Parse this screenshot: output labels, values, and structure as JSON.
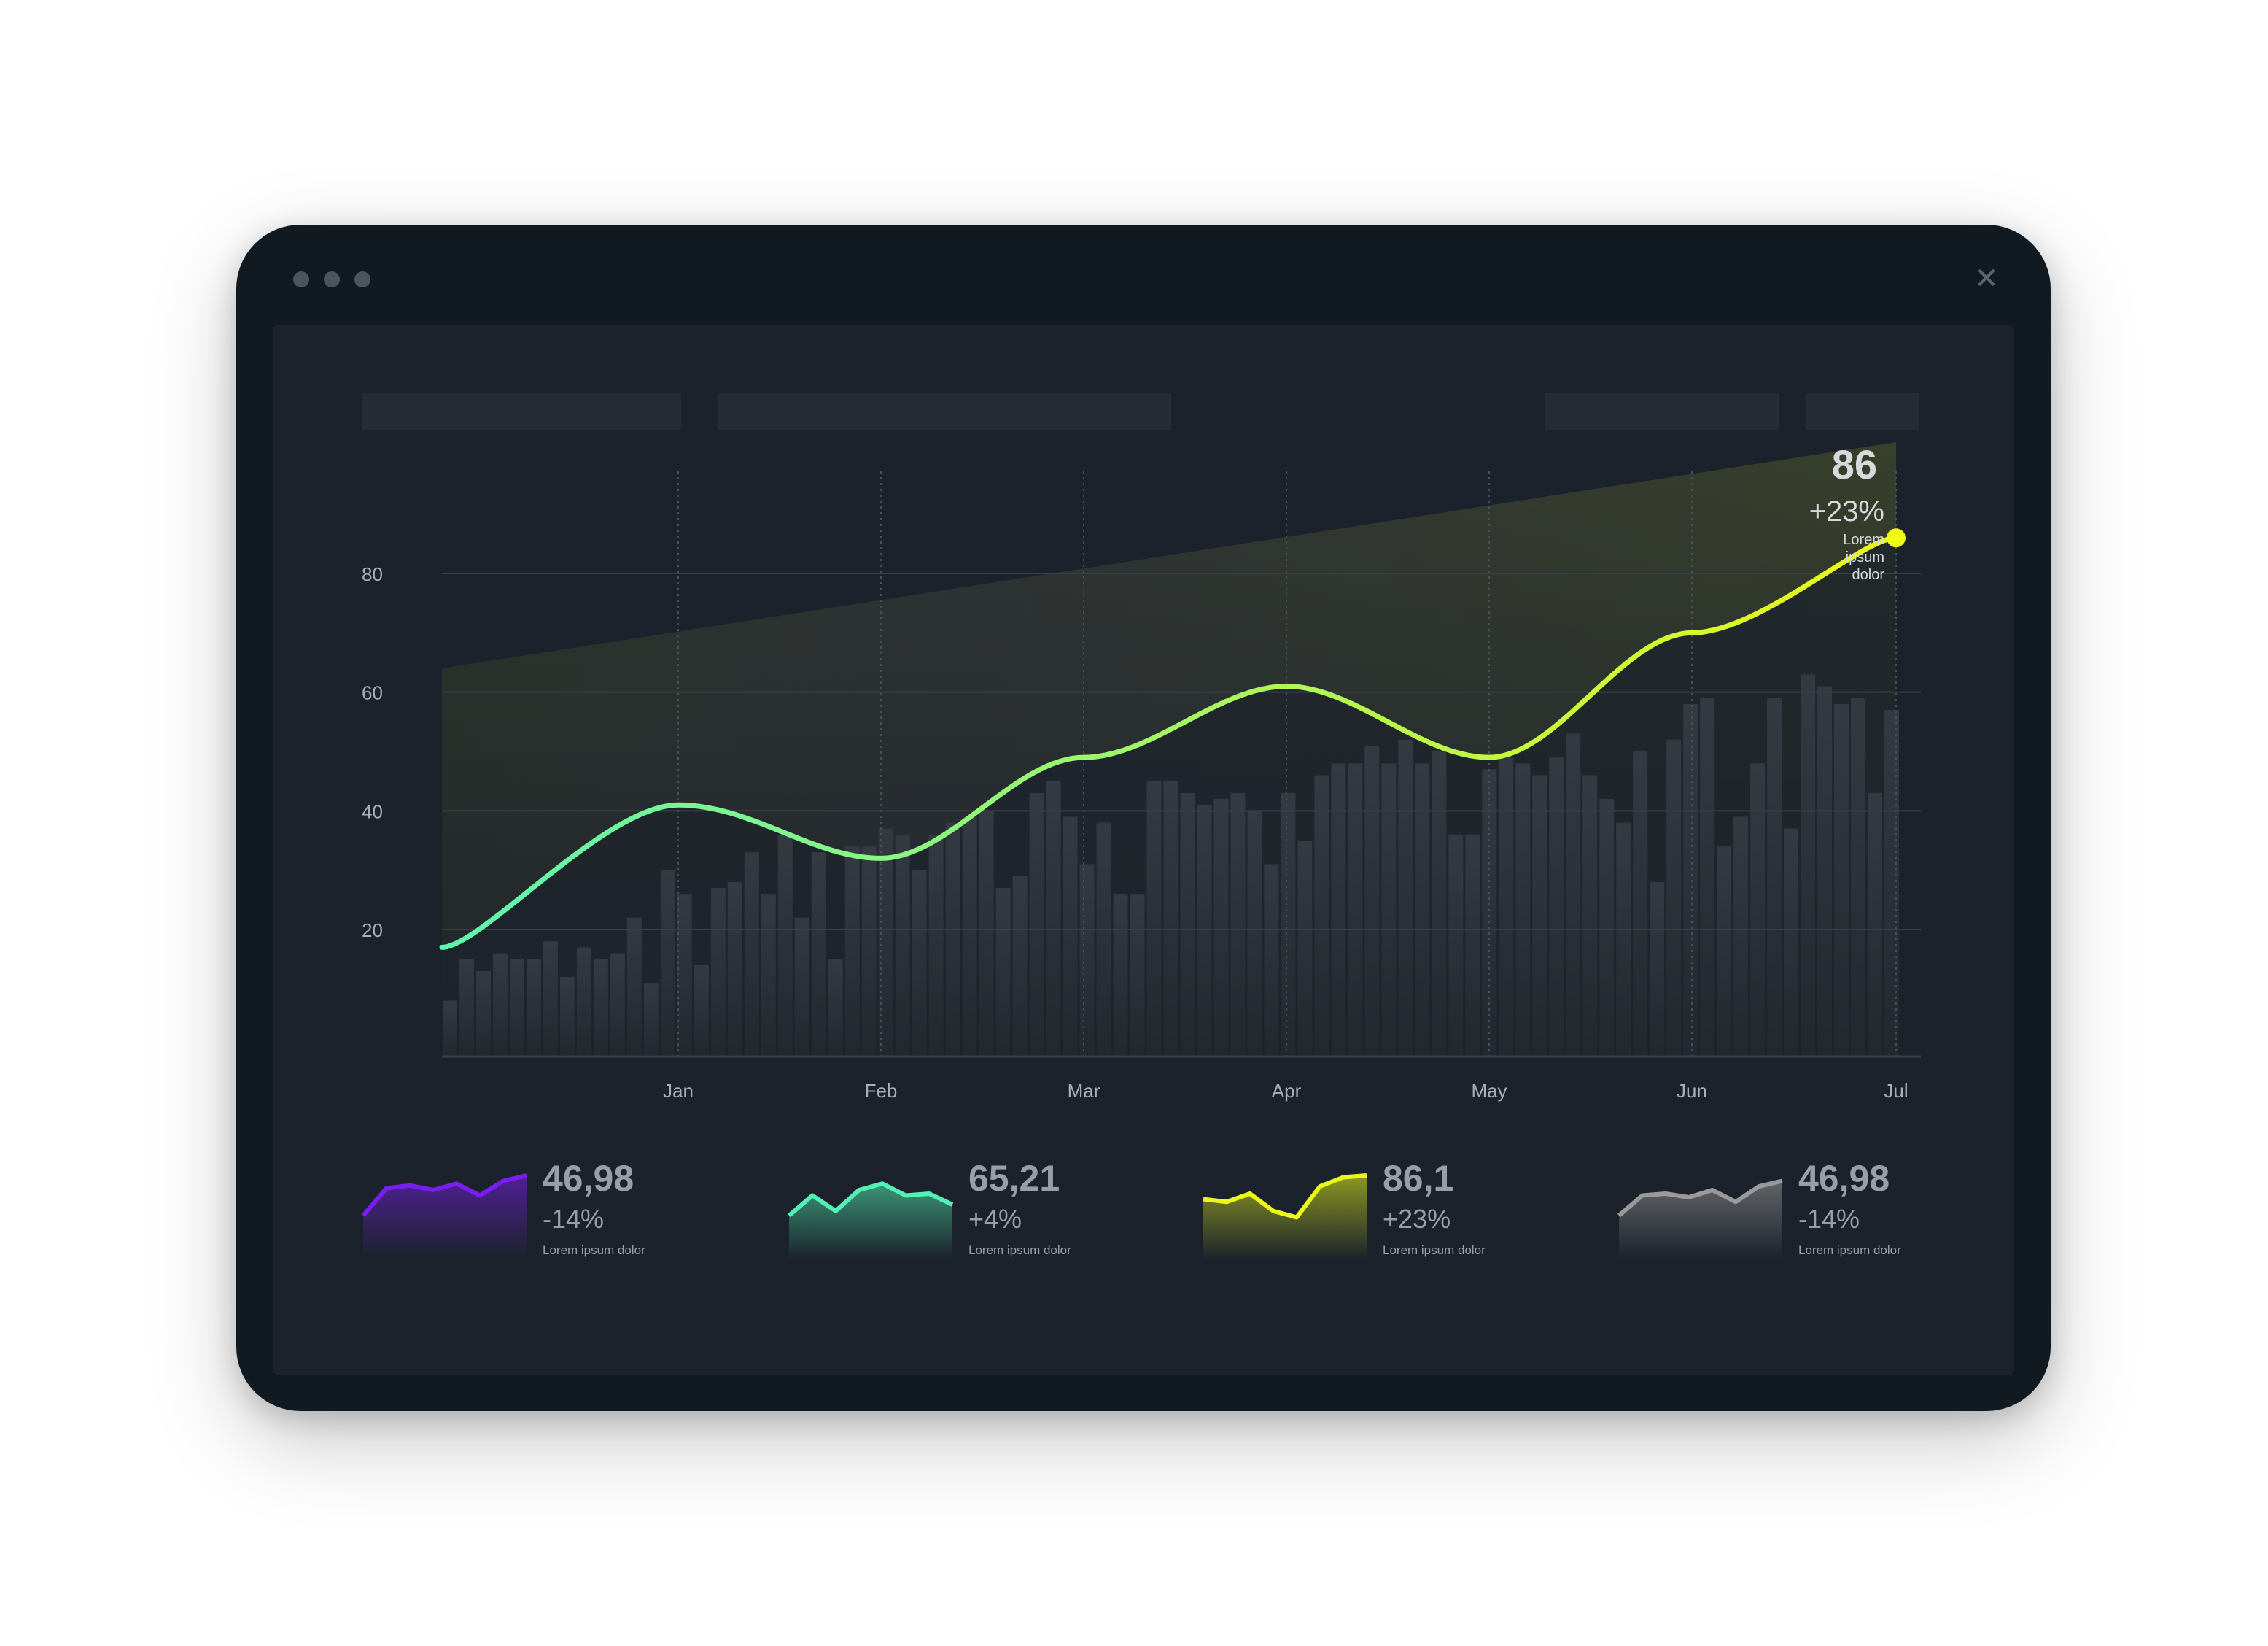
{
  "window": {
    "close_glyph": "✕",
    "dots": [
      "#4a5560",
      "#4a5560",
      "#4a5560"
    ]
  },
  "colors": {
    "background": "#1c222b",
    "frame": "#121a21",
    "bar": "#2d333b",
    "grid": "#3a4048",
    "line_start": "#5ff5b0",
    "line_end": "#eaf81a",
    "marker": "#f0fa14"
  },
  "chart_data": {
    "type": "line",
    "y_ticks": [
      "20",
      "40",
      "60",
      "80"
    ],
    "ylim": [
      0,
      100
    ],
    "x_labels": [
      "Jan",
      "Feb",
      "Mar",
      "Apr",
      "May",
      "Jun",
      "Jul"
    ],
    "grid": true,
    "line": {
      "x": [
        "",
        "Jan",
        "Feb",
        "Mar",
        "Apr",
        "May",
        "Jun",
        "Jul"
      ],
      "y": [
        17,
        41,
        32,
        49,
        61,
        49,
        70,
        86
      ]
    },
    "bars": [
      8,
      15,
      13,
      16,
      15,
      15,
      18,
      12,
      17,
      15,
      16,
      22,
      11,
      30,
      26,
      14,
      27,
      28,
      33,
      26,
      36,
      22,
      33,
      15,
      34,
      34,
      37,
      36,
      30,
      36,
      38,
      39,
      40,
      27,
      29,
      43,
      45,
      39,
      31,
      38,
      26,
      26,
      45,
      45,
      43,
      41,
      42,
      43,
      40,
      31,
      43,
      35,
      46,
      48,
      48,
      51,
      48,
      52,
      48,
      50,
      36,
      36,
      47,
      49,
      48,
      46,
      49,
      53,
      46,
      42,
      38,
      50,
      28,
      52,
      58,
      59,
      34,
      39,
      48,
      59,
      37,
      63,
      61,
      58,
      59,
      43,
      57
    ],
    "callout": {
      "value": "86",
      "change": "+23%",
      "note": [
        "Lorem",
        "ipsum",
        "dolor"
      ]
    }
  },
  "stats": [
    {
      "value": "46,98",
      "change": "-14%",
      "note": "Lorem ipsum dolor",
      "color": "#7a1ef0",
      "spark": [
        40,
        70,
        73,
        68,
        75,
        62,
        78,
        84
      ]
    },
    {
      "value": "65,21",
      "change": "+4%",
      "note": "Lorem ipsum dolor",
      "color": "#52f2b4",
      "spark": [
        40,
        62,
        45,
        68,
        75,
        62,
        64,
        52
      ]
    },
    {
      "value": "86,1",
      "change": "+23%",
      "note": "Lorem ipsum dolor",
      "color": "#eaf81a",
      "spark": [
        58,
        55,
        64,
        45,
        38,
        72,
        82,
        84
      ]
    },
    {
      "value": "46,98",
      "change": "-14%",
      "note": "Lorem ipsum dolor",
      "color": "#9a9a9a",
      "spark": [
        40,
        62,
        64,
        60,
        68,
        55,
        72,
        78
      ]
    }
  ]
}
